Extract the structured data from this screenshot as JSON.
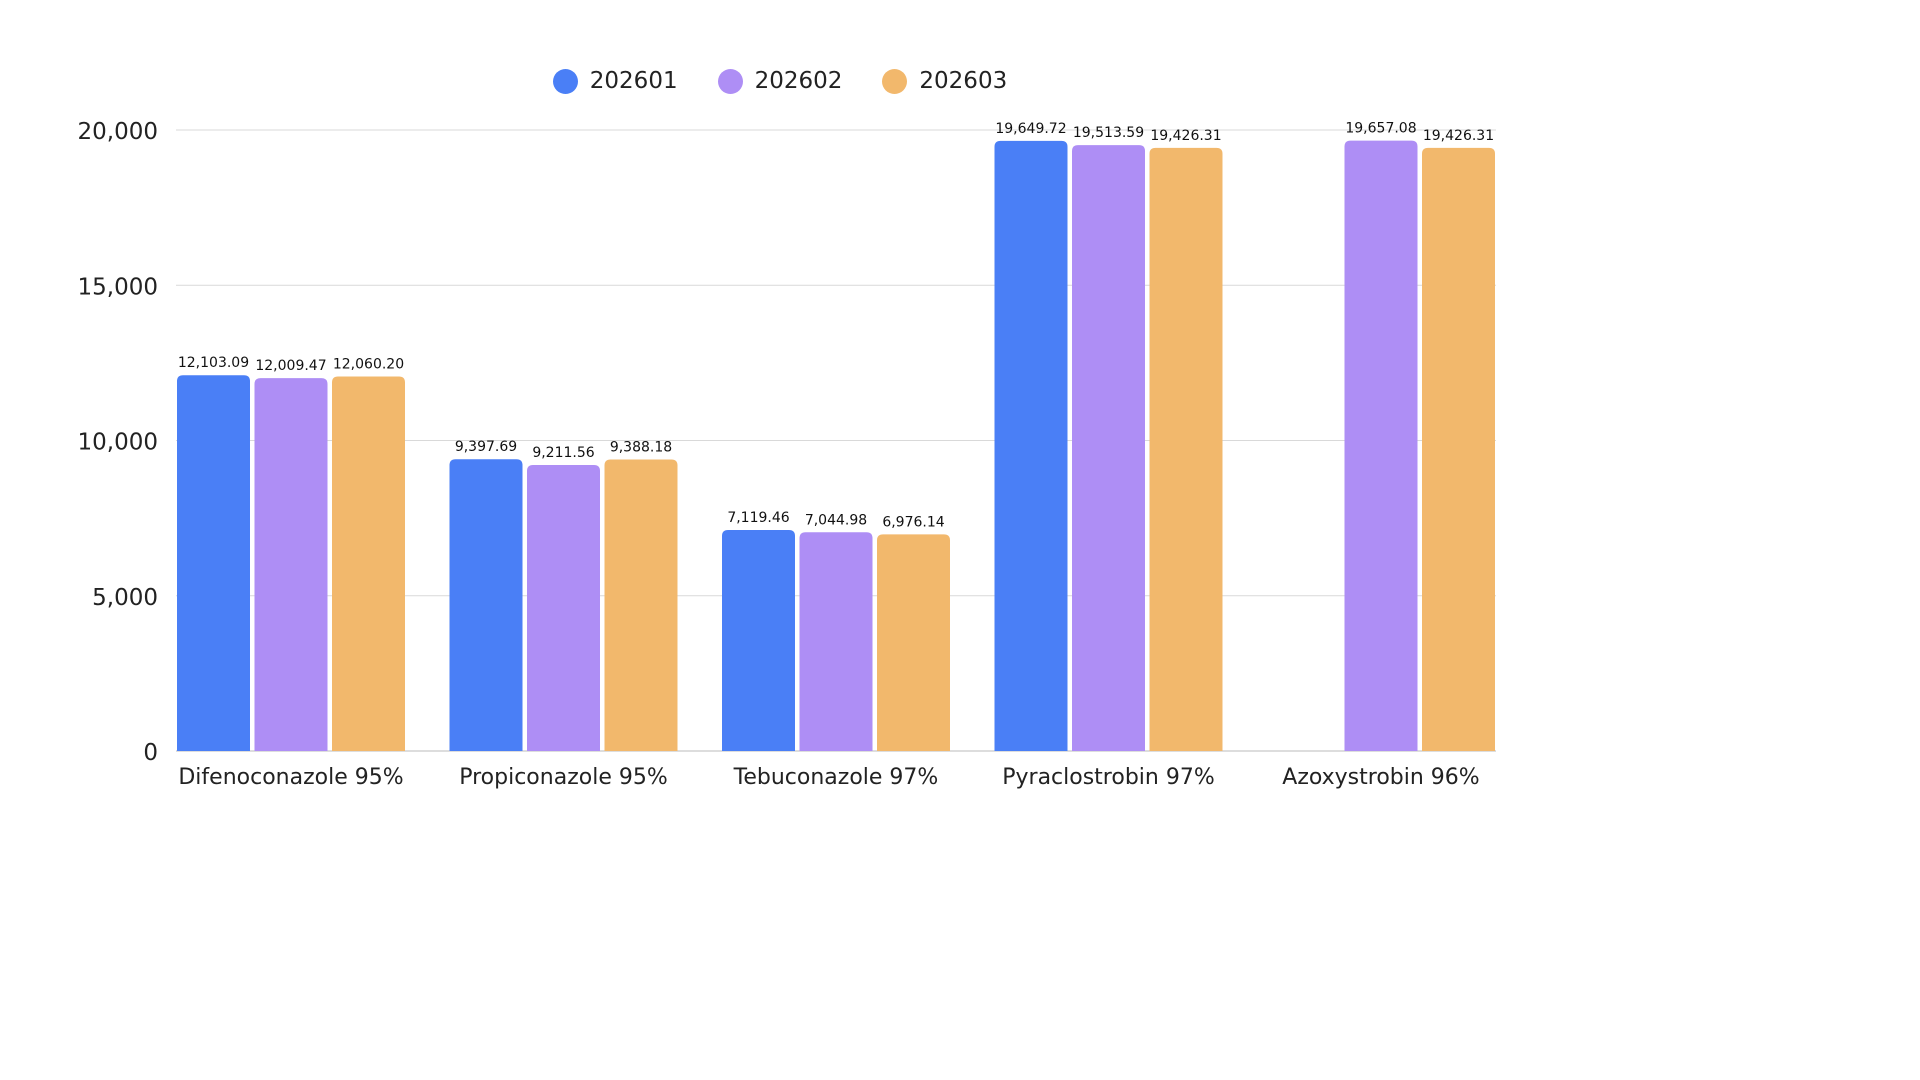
{
  "chart_data": {
    "type": "bar",
    "categories": [
      "Difenoconazole 95%",
      "Propiconazole 95%",
      "Tebuconazole 97%",
      "Pyraclostrobin 97%",
      "Azoxystrobin 96%"
    ],
    "series": [
      {
        "name": "202601",
        "color": "#4a7ff6",
        "values": [
          12103.09,
          9397.69,
          7119.46,
          19649.72,
          null
        ],
        "labels": [
          "12,103.09",
          "9,397.69",
          "7,119.46",
          "19,649.72",
          ""
        ]
      },
      {
        "name": "202602",
        "color": "#ae8ef5",
        "values": [
          12009.47,
          9211.56,
          7044.98,
          19513.59,
          19657.08
        ],
        "labels": [
          "12,009.47",
          "9,211.56",
          "7,044.98",
          "19,513.59",
          "19,657.08"
        ]
      },
      {
        "name": "202603",
        "color": "#f2b86c",
        "values": [
          12060.2,
          9388.18,
          6976.14,
          19426.31,
          19426.31
        ],
        "labels": [
          "12,060.20",
          "9,388.18",
          "6,976.14",
          "19,426.31",
          "19,426.31"
        ]
      }
    ],
    "yticks": [
      0,
      5000,
      10000,
      15000,
      20000
    ],
    "ytick_labels": [
      "0",
      "5,000",
      "10,000",
      "15,000",
      "20,000"
    ],
    "ylim": [
      0,
      20000
    ],
    "grid": true,
    "legend_position": "top-center"
  }
}
